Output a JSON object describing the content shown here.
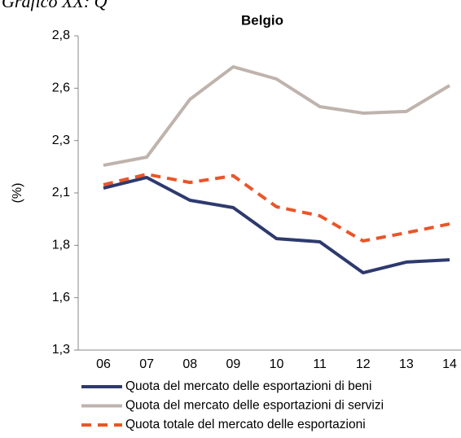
{
  "chart_data": {
    "type": "line",
    "subtitle": "Grafico XX: Q",
    "title": "Belgio",
    "y_label": "(%)",
    "categories": [
      "06",
      "07",
      "08",
      "09",
      "10",
      "11",
      "12",
      "13",
      "14"
    ],
    "ylim": [
      1.3,
      2.8
    ],
    "yticks": [
      {
        "value": 1.3,
        "label": "1,3"
      },
      {
        "value": 1.55,
        "label": "1,6"
      },
      {
        "value": 1.8,
        "label": "1,8"
      },
      {
        "value": 2.05,
        "label": "2,1"
      },
      {
        "value": 2.3,
        "label": "2,3"
      },
      {
        "value": 2.55,
        "label": "2,6"
      },
      {
        "value": 2.8,
        "label": "2,8"
      }
    ],
    "grid": false,
    "series": [
      {
        "name": "Quota del mercato delle esportazioni di beni",
        "color": "#2e3a6e",
        "style": "solid",
        "values": [
          2.073,
          2.124,
          2.015,
          1.98,
          1.832,
          1.817,
          1.669,
          1.72,
          1.731
        ]
      },
      {
        "name": "Quota del mercato delle esportazioni di servizi",
        "color": "#bfb3ad",
        "style": "solid",
        "values": [
          2.182,
          2.221,
          2.497,
          2.652,
          2.594,
          2.462,
          2.431,
          2.439,
          2.563
        ]
      },
      {
        "name": "Quota totale del mercato delle esportazioni",
        "color": "#e8562a",
        "style": "dashed",
        "values": [
          2.089,
          2.139,
          2.1,
          2.132,
          1.984,
          1.941,
          1.821,
          1.86,
          1.902
        ]
      }
    ]
  }
}
